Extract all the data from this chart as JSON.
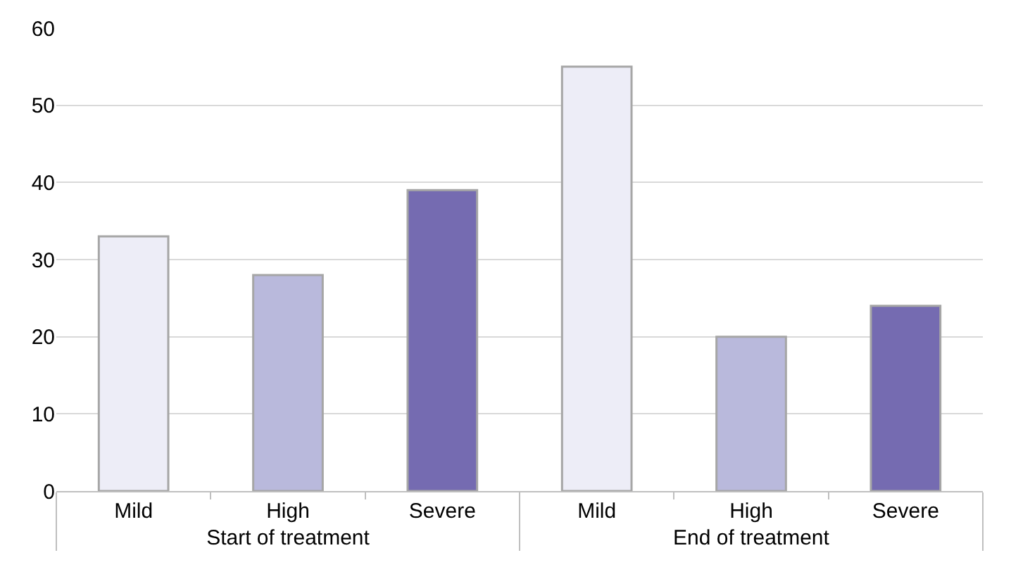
{
  "chart_data": {
    "type": "bar",
    "categories": [
      "Mild",
      "High",
      "Severe",
      "Mild",
      "High",
      "Severe"
    ],
    "values": [
      33,
      28,
      39,
      55,
      20,
      24
    ],
    "colors": [
      "#ededf7",
      "#b9b9dc",
      "#756bb1",
      "#ededf7",
      "#b9b9dc",
      "#756bb1"
    ],
    "annotations": [
      "Start of treatment",
      "End of treatment"
    ],
    "ylim": [
      0,
      60
    ],
    "yticks": [
      0,
      10,
      20,
      30,
      40,
      50,
      60
    ],
    "grid": "y"
  }
}
